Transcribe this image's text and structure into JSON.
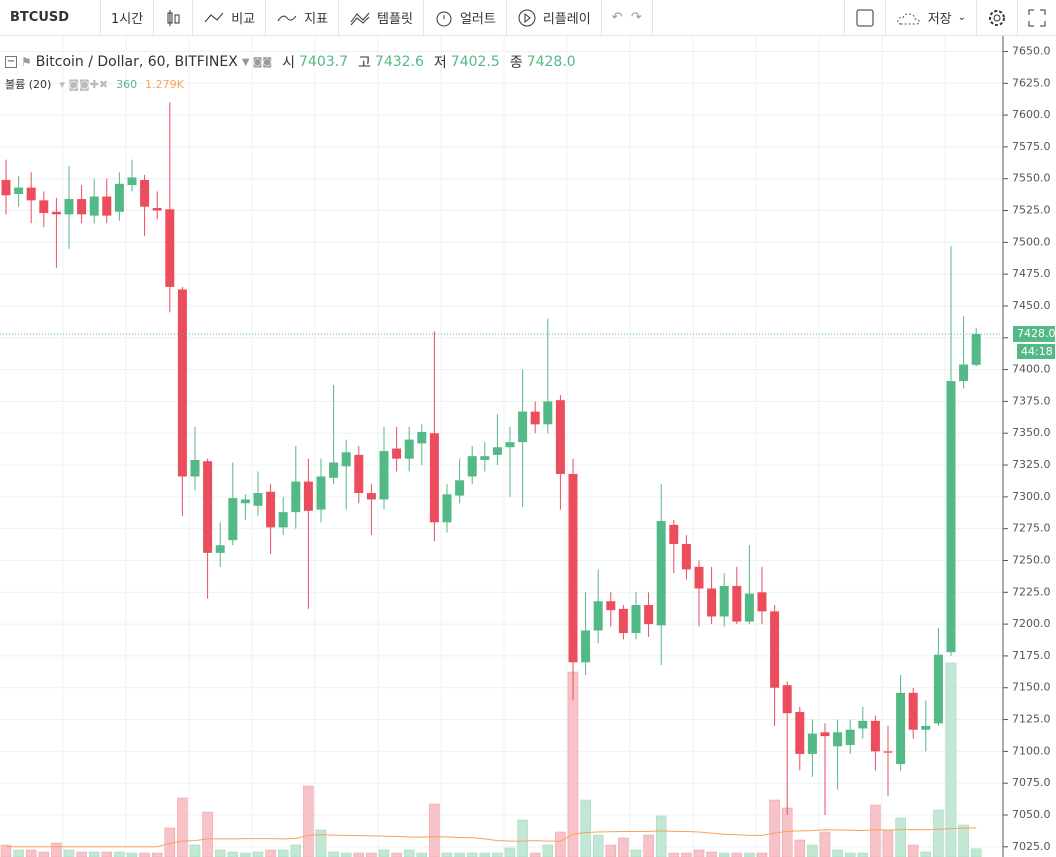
{
  "toolbar": {
    "symbol": "BTCUSD",
    "interval": "1시간",
    "compare": "비교",
    "indicators": "지표",
    "templates": "템플릿",
    "alert": "얼러트",
    "replay": "리플레이",
    "save": "저장"
  },
  "legend": {
    "name": "Bitcoin / Dollar, 60, BITFINEX",
    "open_label": "시",
    "open": "7403.7",
    "high_label": "고",
    "high": "7432.6",
    "low_label": "저",
    "low": "7402.5",
    "close_label": "종",
    "close": "7428.0",
    "volume_name": "볼륨 (20)",
    "volume": "360",
    "volume_ma": "1.279K"
  },
  "chart_data": {
    "type": "candlestick",
    "open": [
      7549,
      7538,
      7543,
      7533,
      7524,
      7522,
      7534,
      7521,
      7536,
      7524,
      7545,
      7549,
      7527,
      7526,
      7463,
      7316,
      7328,
      7256,
      7266,
      7295,
      7293,
      7304,
      7276,
      7288,
      7312,
      7290,
      7315,
      7324,
      7333,
      7303,
      7298,
      7338,
      7330,
      7342,
      7350,
      7280,
      7301,
      7316,
      7329,
      7333,
      7339,
      7343,
      7367,
      7357,
      7376,
      7318,
      7170,
      7195,
      7218,
      7212,
      7193,
      7215,
      7199,
      7278,
      7263,
      7245,
      7228,
      7206,
      7230,
      7202,
      7225,
      7210,
      7152,
      7131,
      7098,
      7115,
      7104,
      7105,
      7118,
      7124,
      7100,
      7090,
      7146,
      7117,
      7122,
      7178,
      7391,
      7403.7
    ],
    "high": [
      7565,
      7552,
      7555,
      7540,
      7535,
      7560,
      7545,
      7550,
      7550,
      7555,
      7565,
      7553,
      7540,
      7610,
      7465,
      7355,
      7330,
      7280,
      7327,
      7302,
      7320,
      7310,
      7300,
      7340,
      7330,
      7330,
      7388,
      7345,
      7340,
      7310,
      7355,
      7355,
      7355,
      7357,
      7430,
      7310,
      7330,
      7340,
      7343,
      7365,
      7355,
      7400,
      7375,
      7440,
      7380,
      7330,
      7225,
      7243,
      7225,
      7215,
      7225,
      7225,
      7310,
      7282,
      7270,
      7250,
      7245,
      7240,
      7245,
      7262,
      7245,
      7215,
      7155,
      7135,
      7125,
      7122,
      7125,
      7125,
      7135,
      7128,
      7120,
      7160,
      7150,
      7140,
      7197,
      7497,
      7442,
      7432.6
    ],
    "low": [
      7522,
      7528,
      7515,
      7512,
      7480,
      7495,
      7515,
      7515,
      7515,
      7517,
      7540,
      7505,
      7518,
      7445,
      7285,
      7305,
      7220,
      7245,
      7262,
      7282,
      7285,
      7255,
      7270,
      7275,
      7212,
      7280,
      7310,
      7290,
      7295,
      7270,
      7290,
      7320,
      7320,
      7325,
      7265,
      7272,
      7295,
      7310,
      7320,
      7325,
      7300,
      7292,
      7350,
      7350,
      7290,
      7140,
      7160,
      7185,
      7198,
      7188,
      7188,
      7190,
      7168,
      7240,
      7235,
      7198,
      7200,
      7198,
      7200,
      7200,
      7200,
      7120,
      7050,
      7085,
      7080,
      7050,
      7070,
      7098,
      7110,
      7085,
      7065,
      7085,
      7110,
      7100,
      7120,
      7175,
      7385,
      7402.5
    ],
    "close": [
      7537,
      7543,
      7533,
      7523,
      7522,
      7534,
      7522,
      7536,
      7521,
      7546,
      7551,
      7528,
      7525,
      7465,
      7316,
      7329,
      7256,
      7262,
      7299,
      7298,
      7303,
      7276,
      7288,
      7312,
      7289,
      7316,
      7327,
      7335,
      7303,
      7298,
      7336,
      7330,
      7345,
      7351,
      7280,
      7302,
      7313,
      7332,
      7332,
      7339,
      7343,
      7367,
      7357,
      7375,
      7318,
      7170,
      7195,
      7218,
      7211,
      7193,
      7215,
      7200,
      7281,
      7263,
      7243,
      7228,
      7206,
      7230,
      7202,
      7224,
      7210,
      7150,
      7130,
      7098,
      7114,
      7112,
      7115,
      7117,
      7124,
      7100,
      7099,
      7146,
      7117,
      7120,
      7176,
      7391,
      7404,
      7428
    ],
    "volume": [
      528,
      308,
      308,
      220,
      616,
      308,
      220,
      220,
      220,
      220,
      176,
      176,
      176,
      1276,
      2596,
      528,
      1980,
      308,
      220,
      176,
      220,
      308,
      308,
      528,
      3124,
      1188,
      220,
      176,
      176,
      176,
      308,
      176,
      308,
      176,
      2332,
      176,
      176,
      176,
      176,
      176,
      396,
      1628,
      176,
      528,
      1100,
      8140,
      2508,
      968,
      528,
      836,
      308,
      968,
      1804,
      176,
      176,
      308,
      220,
      176,
      176,
      176,
      176,
      2508,
      2156,
      748,
      528,
      1100,
      308,
      176,
      176,
      2288,
      1188,
      1716,
      528,
      220,
      2068,
      8536,
      1408,
      360
    ],
    "volume_ma": [
      450,
      450,
      450,
      450,
      450,
      450,
      450,
      450,
      450,
      450,
      450,
      450,
      450,
      600,
      700,
      720,
      800,
      800,
      800,
      810,
      810,
      810,
      800,
      820,
      950,
      980,
      960,
      950,
      940,
      930,
      920,
      900,
      880,
      870,
      900,
      880,
      860,
      850,
      800,
      720,
      700,
      700,
      720,
      700,
      700,
      1000,
      1080,
      1100,
      1110,
      1120,
      1120,
      1130,
      1150,
      1130,
      1120,
      1100,
      1050,
      1000,
      980,
      950,
      950,
      1050,
      1130,
      1150,
      1160,
      1200,
      1190,
      1180,
      1160,
      1200,
      1190,
      1200,
      1210,
      1200,
      1220,
      1250,
      1270,
      1279
    ],
    "up_color": "#53b987",
    "down_color": "#eb4d5c",
    "volume_up_color": "#c3e7d5",
    "volume_down_color": "#f8c3c8",
    "ma_color": "#f7a35c",
    "ylim": [
      7017,
      7659
    ],
    "yticks": [
      {
        "value": 7025,
        "label": "7025.0"
      },
      {
        "value": 7050,
        "label": "7050.0"
      },
      {
        "value": 7075,
        "label": "7075.0"
      },
      {
        "value": 7100,
        "label": "7100.0"
      },
      {
        "value": 7125,
        "label": "7125.0"
      },
      {
        "value": 7150,
        "label": "7150.0"
      },
      {
        "value": 7175,
        "label": "7175.0"
      },
      {
        "value": 7200,
        "label": "7200.0"
      },
      {
        "value": 7225,
        "label": "7225.0"
      },
      {
        "value": 7250,
        "label": "7250.0"
      },
      {
        "value": 7275,
        "label": "7275.0"
      },
      {
        "value": 7300,
        "label": "7300.0"
      },
      {
        "value": 7325,
        "label": "7325.0"
      },
      {
        "value": 7350,
        "label": "7350.0"
      },
      {
        "value": 7375,
        "label": "7375.0"
      },
      {
        "value": 7400,
        "label": "7400.0"
      },
      {
        "value": 7425,
        "label": "7425.0"
      },
      {
        "value": 7450,
        "label": "7450.0"
      },
      {
        "value": 7475,
        "label": "7475.0"
      },
      {
        "value": 7500,
        "label": "7500.0"
      },
      {
        "value": 7525,
        "label": "7525.0"
      },
      {
        "value": 7550,
        "label": "7550.0"
      },
      {
        "value": 7575,
        "label": "7575.0"
      },
      {
        "value": 7600,
        "label": "7600.0"
      },
      {
        "value": 7625,
        "label": "7625.0"
      },
      {
        "value": 7650,
        "label": "7650.0"
      }
    ],
    "grid": true,
    "last_price_label": "7428.0",
    "countdown": "44:18"
  }
}
